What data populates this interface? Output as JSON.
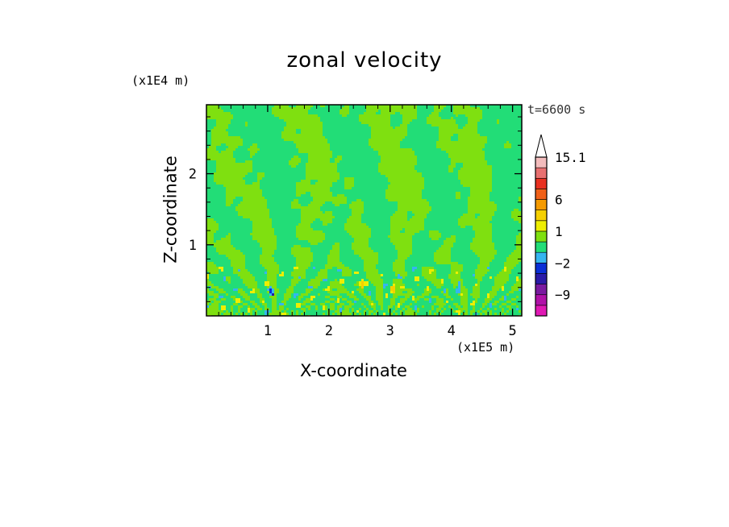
{
  "chart_data": {
    "type": "heatmap",
    "title": "zonal velocity",
    "xlabel": "X-coordinate",
    "ylabel": "Z-coordinate",
    "x_scale_label": "(x1E5 m)",
    "y_scale_label": "(x1E4 m)",
    "time_label": "t=6600 s",
    "x_range": [
      0,
      5.15
    ],
    "y_range": [
      0,
      2.97
    ],
    "x_ticks": [
      {
        "value": 1,
        "label": "1"
      },
      {
        "value": 2,
        "label": "2"
      },
      {
        "value": 3,
        "label": "3"
      },
      {
        "value": 4,
        "label": "4"
      },
      {
        "value": 5,
        "label": "5"
      }
    ],
    "y_ticks": [
      {
        "value": 1,
        "label": "1"
      },
      {
        "value": 2,
        "label": "2"
      }
    ],
    "colorbar": {
      "levels": [
        -16.2,
        -12.6,
        -9,
        -5.4,
        -3.6,
        -2,
        -1,
        0,
        1,
        2,
        3.6,
        6,
        8.4,
        10.8,
        13,
        15.1
      ],
      "colors": [
        "#e019b4",
        "#b012a8",
        "#7a1aa0",
        "#2a1aa8",
        "#0a2fd6",
        "#35b5f0",
        "#22dd77",
        "#7fe010",
        "#eeee00",
        "#f5d000",
        "#f59a00",
        "#f06018",
        "#e83020",
        "#e87070",
        "#f3bcbc"
      ],
      "extend_color": "#ffffff",
      "tick_labels": [
        {
          "value": 15.1,
          "label": "15.1"
        },
        {
          "value": 6,
          "label": "6"
        },
        {
          "value": 1,
          "label": "1"
        },
        {
          "value": -2,
          "label": "−2"
        },
        {
          "value": -9,
          "label": "−9"
        }
      ]
    },
    "dominant_field": {
      "background_value": 0.5,
      "green_band_value": -0.5,
      "jet_centers_x": [
        1.1,
        2.9,
        4.3
      ],
      "extreme_spots": [
        {
          "x": 1.07,
          "z": 0.33,
          "value": -5
        },
        {
          "x": 1.05,
          "z": 0.36,
          "value": -2.5
        },
        {
          "x": 4.12,
          "z": 0.36,
          "value": -1.5
        },
        {
          "x": 2.55,
          "z": 0.45,
          "value": 3
        },
        {
          "x": 3.05,
          "z": 0.38,
          "value": 3
        }
      ]
    }
  }
}
